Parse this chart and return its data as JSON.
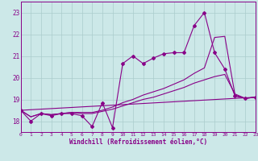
{
  "background_color": "#cce8e8",
  "grid_color": "#aacccc",
  "line_color": "#880088",
  "x_label": "Windchill (Refroidissement éolien,°C)",
  "y_min": 17.5,
  "y_max": 23.5,
  "x_min": 0,
  "x_max": 23,
  "yticks": [
    18,
    19,
    20,
    21,
    22,
    23
  ],
  "xticks": [
    0,
    1,
    2,
    3,
    4,
    5,
    6,
    7,
    8,
    9,
    10,
    11,
    12,
    13,
    14,
    15,
    16,
    17,
    18,
    19,
    20,
    21,
    22,
    23
  ],
  "series1_x": [
    0,
    1,
    2,
    3,
    4,
    5,
    6,
    7,
    8,
    9,
    10,
    11,
    12,
    13,
    14,
    15,
    16,
    17,
    18,
    19,
    20,
    21,
    22,
    23
  ],
  "series1_y": [
    18.5,
    18.0,
    18.35,
    18.25,
    18.35,
    18.35,
    18.25,
    17.75,
    18.85,
    17.7,
    20.65,
    21.0,
    20.65,
    20.9,
    21.1,
    21.15,
    21.15,
    22.4,
    23.0,
    21.15,
    20.4,
    19.15,
    19.05,
    19.1
  ],
  "series2_x": [
    0,
    1,
    2,
    3,
    4,
    5,
    6,
    7,
    8,
    9,
    10,
    11,
    12,
    13,
    14,
    15,
    16,
    17,
    18,
    19,
    20,
    21,
    22,
    23
  ],
  "series2_y": [
    18.5,
    18.2,
    18.35,
    18.3,
    18.35,
    18.4,
    18.35,
    18.35,
    18.45,
    18.55,
    18.7,
    18.85,
    19.0,
    19.1,
    19.25,
    19.4,
    19.55,
    19.75,
    19.9,
    20.05,
    20.15,
    19.25,
    19.05,
    19.1
  ],
  "series3_x": [
    0,
    1,
    2,
    3,
    4,
    5,
    6,
    7,
    8,
    9,
    10,
    11,
    12,
    13,
    14,
    15,
    16,
    17,
    18,
    19,
    20,
    21,
    22,
    23
  ],
  "series3_y": [
    18.5,
    18.2,
    18.35,
    18.3,
    18.35,
    18.4,
    18.4,
    18.4,
    18.5,
    18.65,
    18.85,
    19.0,
    19.2,
    19.35,
    19.5,
    19.7,
    19.9,
    20.2,
    20.45,
    21.85,
    21.9,
    19.2,
    19.05,
    19.1
  ],
  "series4_x": [
    0,
    23
  ],
  "series4_y": [
    18.5,
    19.1
  ]
}
